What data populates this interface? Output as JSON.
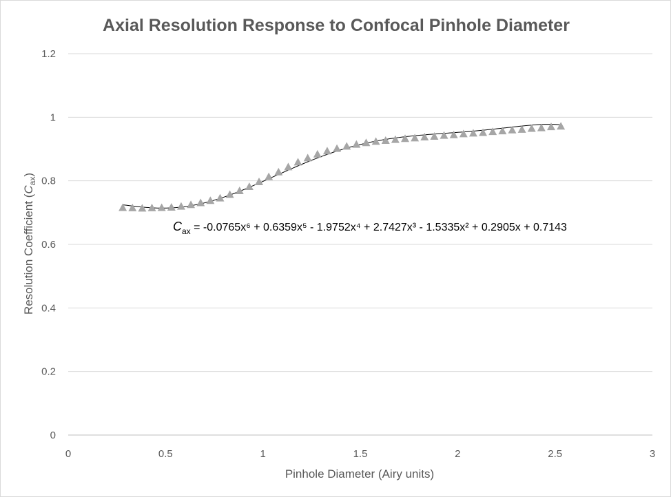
{
  "chart_data": {
    "type": "scatter",
    "title": "Axial Resolution Response to Confocal Pinhole Diameter",
    "xlabel": "Pinhole Diameter (Airy units)",
    "ylabel": {
      "prefix": "Resolution Coefficient (",
      "symbol": "C",
      "subscript": "ax",
      "suffix": ")"
    },
    "xlim": [
      0,
      3
    ],
    "ylim": [
      0,
      1.2
    ],
    "x_ticks": [
      "0",
      "0.5",
      "1",
      "1.5",
      "2",
      "2.5",
      "3"
    ],
    "y_ticks": [
      "0",
      "0.2",
      "0.4",
      "0.6",
      "0.8",
      "1",
      "1.2"
    ],
    "grid": "horizontal",
    "legend": "none",
    "marker": "triangle",
    "marker_color": "#a6a6a6",
    "trendline": {
      "type": "polynomial",
      "order": 6,
      "color": "#000000",
      "coefficients": [
        0.7143,
        0.2905,
        -1.5335,
        2.7427,
        -1.9752,
        0.6359,
        -0.0765
      ]
    },
    "equation": {
      "symbol": "C",
      "subscript": "ax",
      "text": " = -0.0765x⁶ + 0.6359x⁵ - 1.9752x⁴ + 2.7427x³ - 1.5335x² + 0.2905x + 0.7143"
    },
    "series": [
      {
        "x": [
          0.28,
          0.33,
          0.38,
          0.43,
          0.48,
          0.53,
          0.58,
          0.63,
          0.68,
          0.73,
          0.78,
          0.83,
          0.88,
          0.93,
          0.98,
          1.03,
          1.08,
          1.13,
          1.18,
          1.23,
          1.28,
          1.33,
          1.38,
          1.43,
          1.48,
          1.53,
          1.58,
          1.63,
          1.68,
          1.73,
          1.78,
          1.83,
          1.88,
          1.93,
          1.98,
          2.03,
          2.08,
          2.13,
          2.18,
          2.23,
          2.28,
          2.33,
          2.38,
          2.43,
          2.48,
          2.53
        ],
        "y": [
          0.716,
          0.715,
          0.714,
          0.715,
          0.716,
          0.717,
          0.72,
          0.725,
          0.731,
          0.738,
          0.746,
          0.757,
          0.769,
          0.782,
          0.797,
          0.813,
          0.828,
          0.844,
          0.859,
          0.872,
          0.884,
          0.894,
          0.902,
          0.909,
          0.915,
          0.92,
          0.924,
          0.927,
          0.93,
          0.933,
          0.935,
          0.938,
          0.94,
          0.943,
          0.945,
          0.948,
          0.95,
          0.952,
          0.955,
          0.957,
          0.96,
          0.962,
          0.965,
          0.967,
          0.97,
          0.972
        ]
      }
    ]
  }
}
